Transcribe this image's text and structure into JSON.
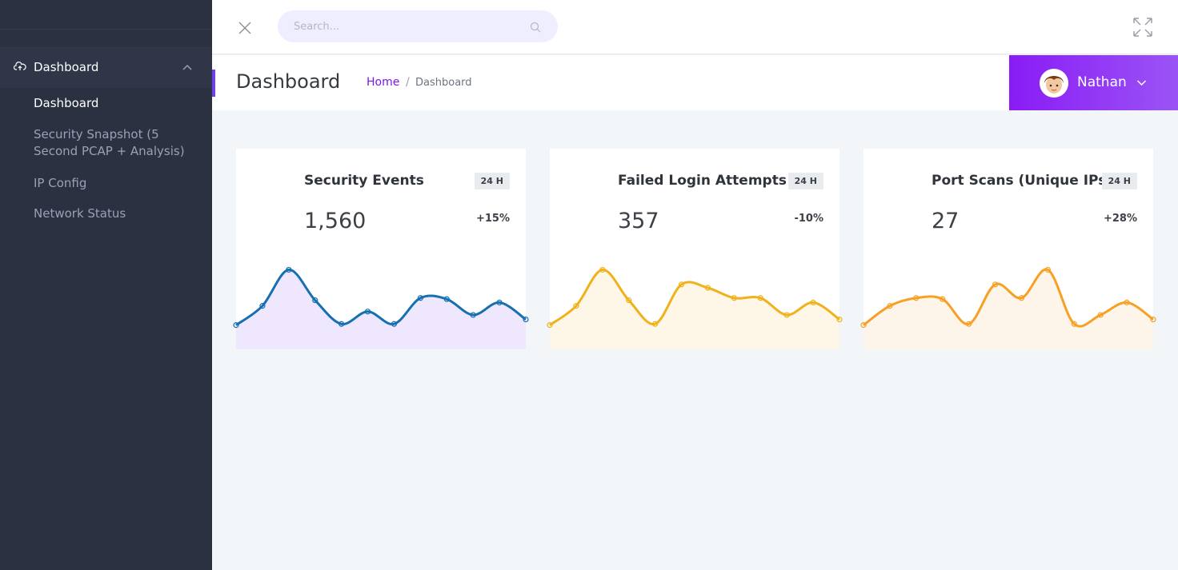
{
  "sidebar": {
    "group": {
      "label": "Dashboard",
      "icon": "cloud-upload-icon"
    },
    "items": [
      {
        "label": "Dashboard",
        "active": true
      },
      {
        "label": "Security Snapshot (5 Second PCAP + Analysis)",
        "active": false
      },
      {
        "label": "IP Config",
        "active": false
      },
      {
        "label": "Network Status",
        "active": false
      }
    ]
  },
  "topbar": {
    "search_placeholder": "Search...",
    "close_icon": "close-icon",
    "expand_icon": "expand-icon"
  },
  "page": {
    "title": "Dashboard",
    "breadcrumb": {
      "home": "Home",
      "separator": "/",
      "current": "Dashboard"
    }
  },
  "user": {
    "name": "Nathan"
  },
  "colors": {
    "sidebar_bg": "#2b3141",
    "accent": "#7b16ea",
    "user_gradient_start": "#8a1bf5",
    "user_gradient_end": "#9a54f5",
    "content_bg": "#f2f6f9"
  },
  "cards": [
    {
      "title": "Security Events",
      "badge": "24 H",
      "value": "1,560",
      "change": "+15%",
      "line_color": "#1670b0",
      "fill_color": "#efe7fd"
    },
    {
      "title": "Failed Login Attempts",
      "badge": "24 H",
      "value": "357",
      "change": "-10%",
      "line_color": "#f0b21b",
      "fill_color": "#fef6e7"
    },
    {
      "title": "Port Scans (Unique IPs)",
      "badge": "24 H",
      "value": "27",
      "change": "+28%",
      "line_color": "#f6a024",
      "fill_color": "#fef5ea"
    }
  ],
  "chart_data": [
    {
      "type": "area",
      "series": [
        {
          "values": [
            13,
            30,
            62,
            35,
            14,
            25,
            14,
            37,
            36,
            22,
            33,
            18
          ]
        }
      ],
      "ylim": [
        0,
        80
      ]
    },
    {
      "type": "area",
      "series": [
        {
          "values": [
            13,
            30,
            62,
            35,
            14,
            49,
            46,
            37,
            37,
            22,
            33,
            18
          ]
        }
      ],
      "ylim": [
        0,
        80
      ]
    },
    {
      "type": "area",
      "series": [
        {
          "values": [
            13,
            30,
            37,
            36,
            14,
            49,
            37,
            62,
            14,
            22,
            33,
            18
          ]
        }
      ],
      "ylim": [
        0,
        80
      ]
    }
  ]
}
